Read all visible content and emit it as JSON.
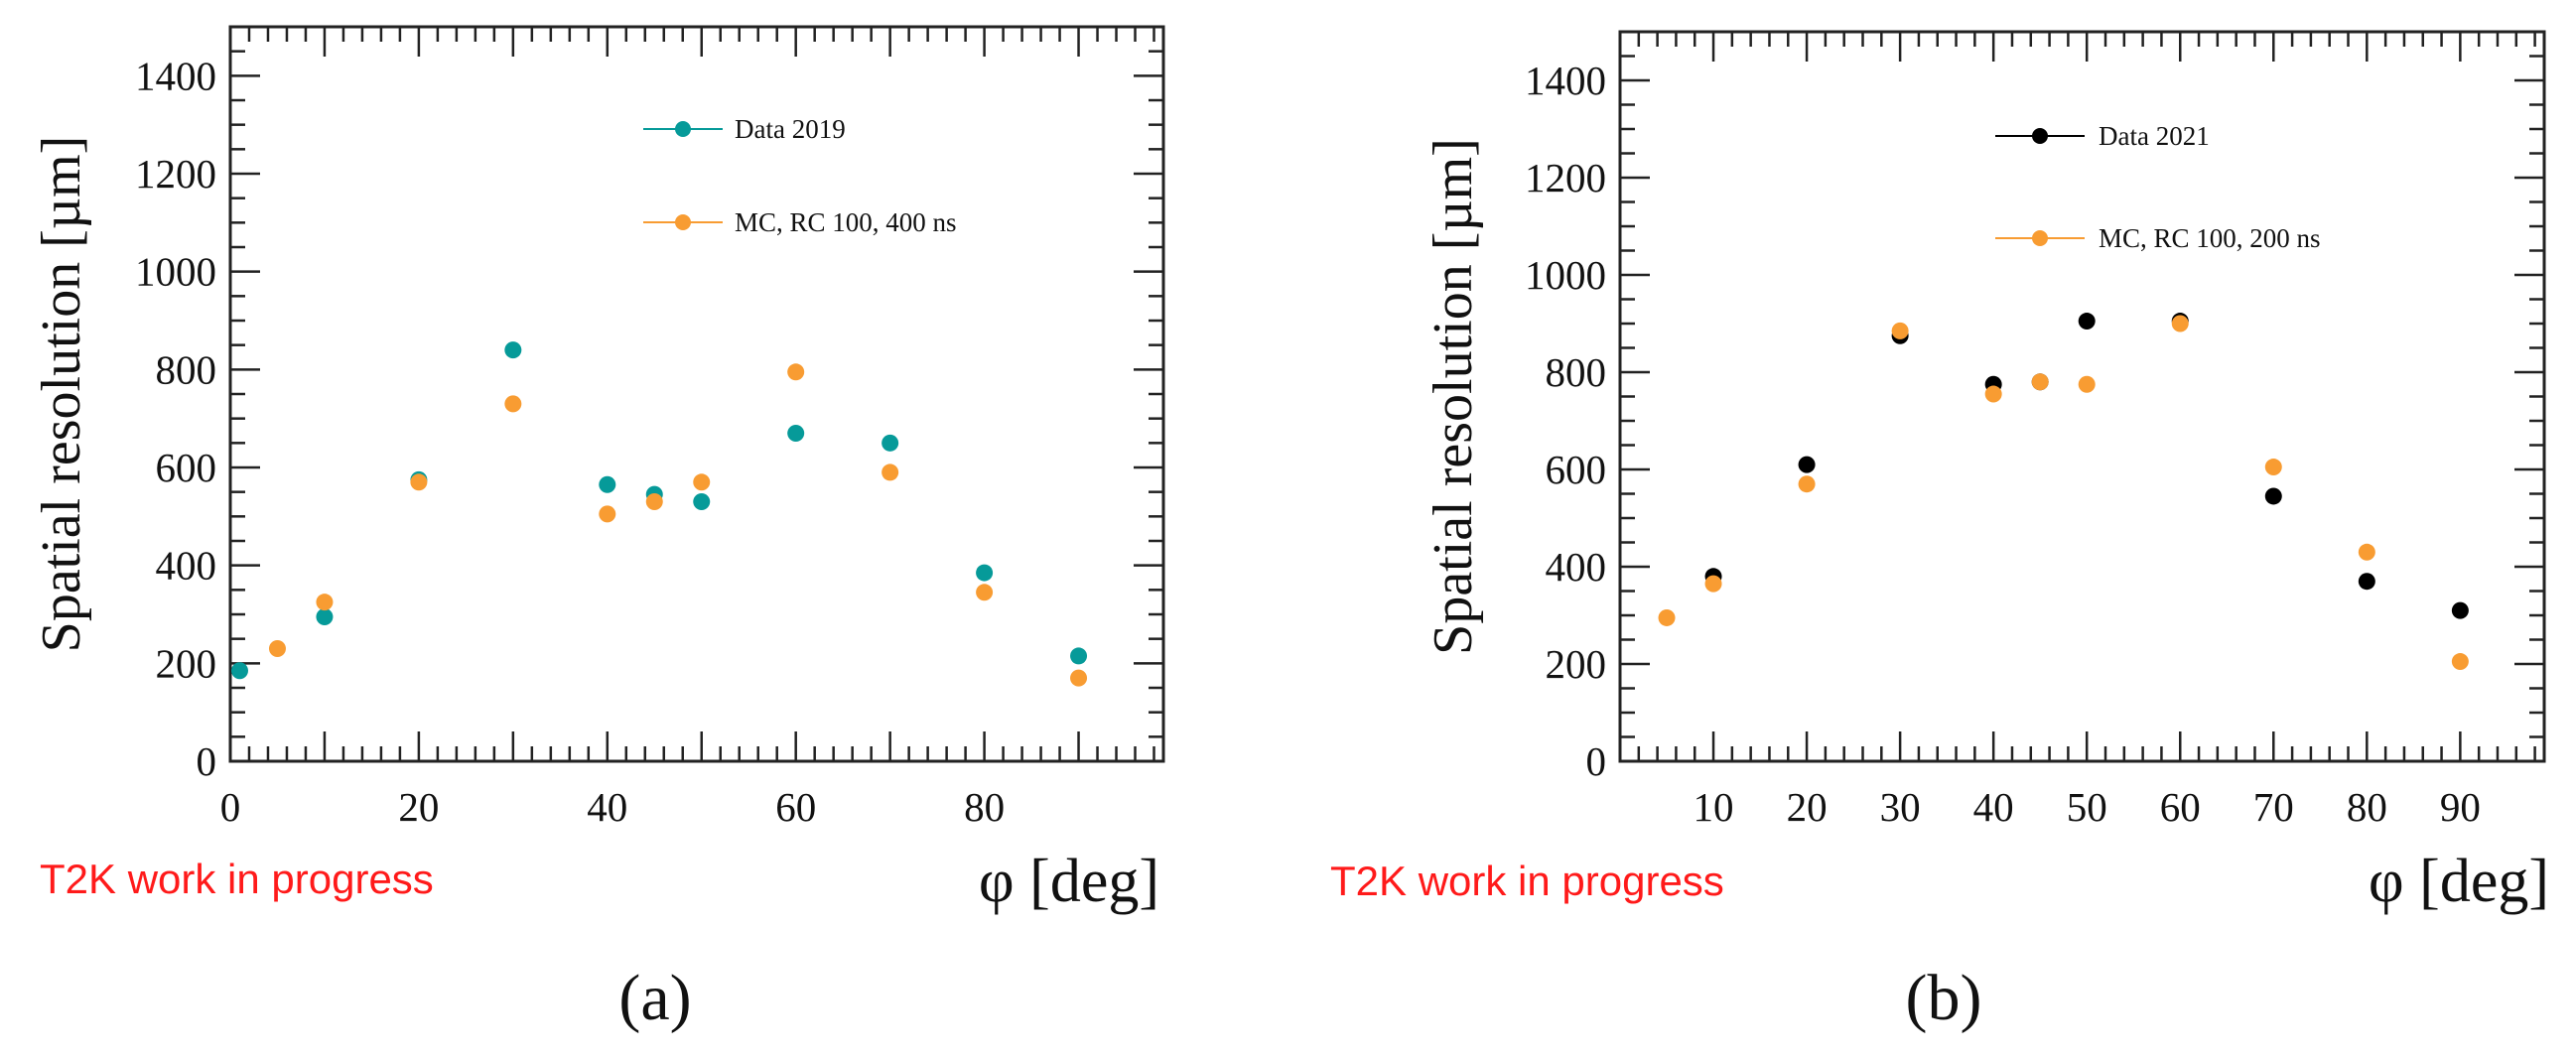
{
  "figure": {
    "panel_labels": [
      "(a)",
      "(b)"
    ]
  },
  "colors": {
    "data_2019": "#069a99",
    "data_2021": "#000000",
    "mc": "#f89c32",
    "wip_text": "#ff1a1a"
  },
  "chart_data": [
    {
      "type": "scatter",
      "panel": "(a)",
      "title": "",
      "xlabel": "φ [deg]",
      "ylabel": "Spatial resolution [µm]",
      "xlim": [
        0,
        99
      ],
      "ylim": [
        0,
        1500
      ],
      "x_ticks": [
        0,
        20,
        40,
        60,
        80
      ],
      "y_ticks": [
        0,
        200,
        400,
        600,
        800,
        1000,
        1200,
        1400
      ],
      "annotation": "T2K work in progress",
      "legend_position": "top-right",
      "series": [
        {
          "name": "Data 2019",
          "color": "#069a99",
          "x": [
            1,
            10,
            20,
            30,
            40,
            45,
            50,
            60,
            70,
            80,
            90
          ],
          "y": [
            185,
            295,
            575,
            840,
            565,
            545,
            530,
            670,
            650,
            385,
            215
          ]
        },
        {
          "name": "MC, RC 100, 400 ns",
          "color": "#f89c32",
          "x": [
            5,
            10,
            20,
            30,
            40,
            45,
            50,
            60,
            70,
            80,
            90
          ],
          "y": [
            230,
            325,
            570,
            730,
            505,
            530,
            570,
            795,
            590,
            345,
            170
          ]
        }
      ]
    },
    {
      "type": "scatter",
      "panel": "(b)",
      "title": "",
      "xlabel": "φ [deg]",
      "ylabel": "Spatial resolution [µm]",
      "xlim": [
        0,
        99
      ],
      "ylim": [
        0,
        1500
      ],
      "x_ticks": [
        10,
        20,
        30,
        40,
        50,
        60,
        70,
        80,
        90
      ],
      "y_ticks": [
        0,
        200,
        400,
        600,
        800,
        1000,
        1200,
        1400
      ],
      "annotation": "T2K work in progress",
      "legend_position": "top-right",
      "series": [
        {
          "name": "Data 2021",
          "color": "#000000",
          "x": [
            10,
            20,
            30,
            40,
            45,
            50,
            60,
            70,
            80,
            90
          ],
          "y": [
            380,
            610,
            875,
            775,
            780,
            905,
            905,
            545,
            370,
            310
          ]
        },
        {
          "name": "MC, RC 100, 200 ns",
          "color": "#f89c32",
          "x": [
            5,
            10,
            20,
            30,
            40,
            45,
            50,
            60,
            70,
            80,
            90
          ],
          "y": [
            295,
            365,
            570,
            885,
            755,
            780,
            775,
            900,
            605,
            430,
            205
          ]
        }
      ]
    }
  ]
}
